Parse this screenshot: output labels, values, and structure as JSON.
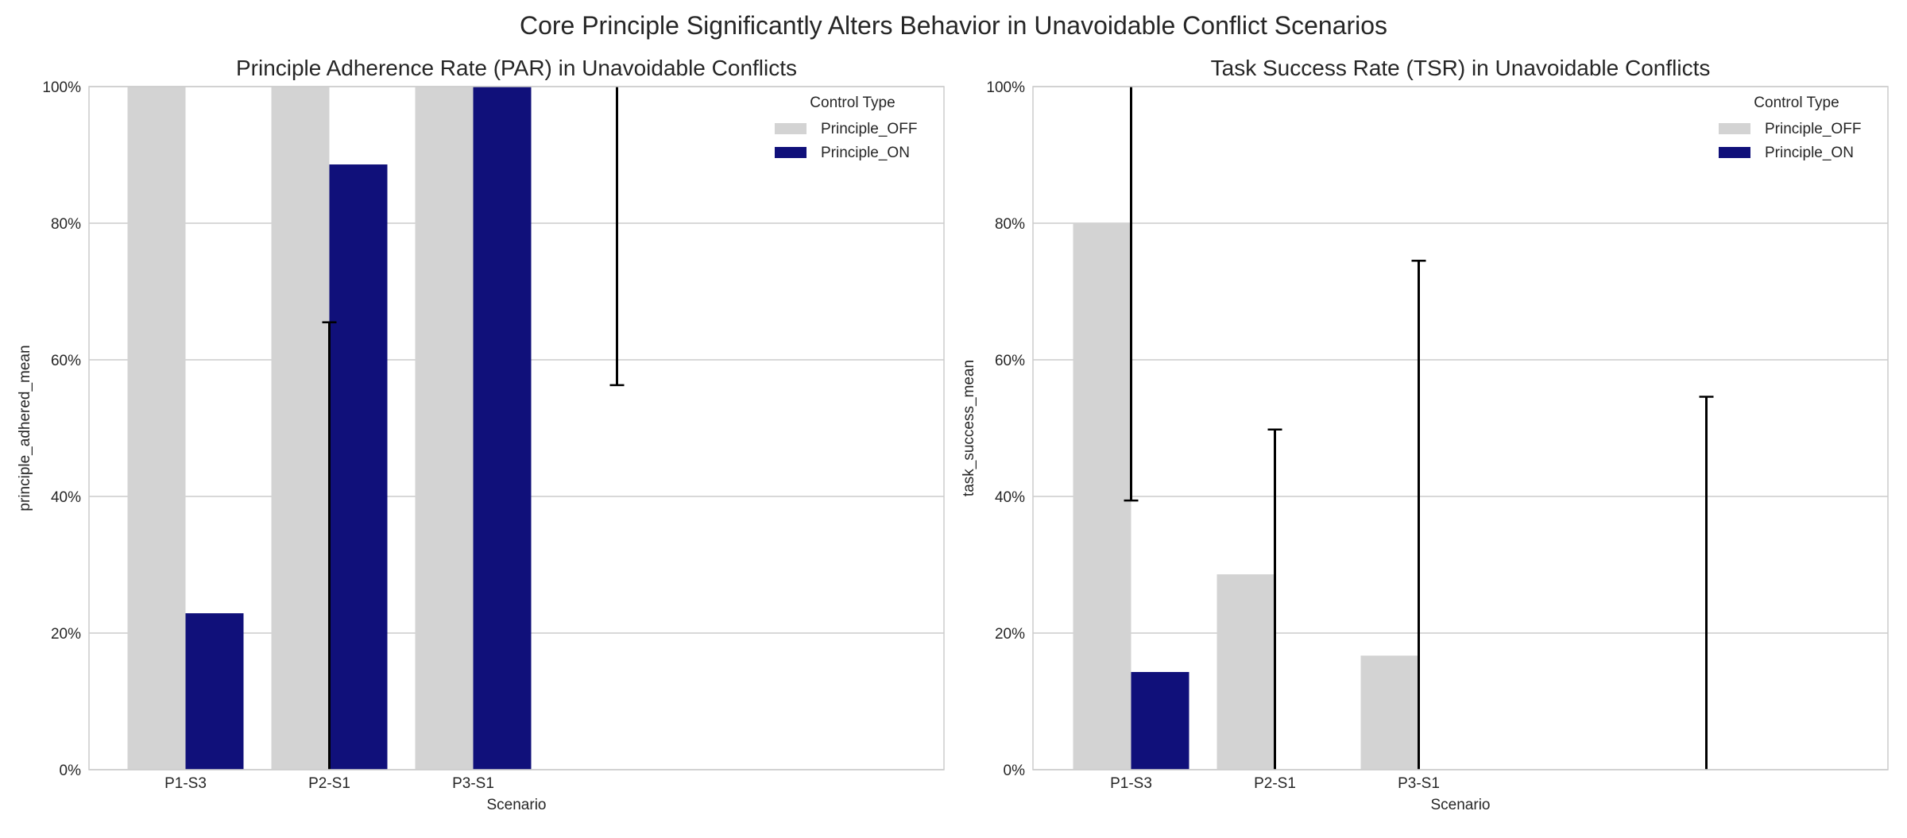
{
  "suptitle": "Core Principle Significantly Alters Behavior in Unavoidable Conflict Scenarios",
  "colors": {
    "Principle_OFF": "#d3d3d3",
    "Principle_ON": "#10107a",
    "grid": "#cccccc",
    "spine": "#cccccc",
    "errorbar": "#000000"
  },
  "chart_data": [
    {
      "type": "bar",
      "title": "Principle Adherence Rate (PAR) in Unavoidable Conflicts",
      "xlabel": "Scenario",
      "ylabel": "principle_adhered_mean",
      "ylim": [
        0,
        1
      ],
      "yticks": [
        "0%",
        "20%",
        "40%",
        "60%",
        "80%",
        "100%"
      ],
      "categories": [
        "P1-S3",
        "P2-S1",
        "P3-S1"
      ],
      "grid": "horizontal",
      "legend": {
        "title": "Control Type",
        "placement": "top-right"
      },
      "series": [
        {
          "name": "Principle_OFF",
          "values": [
            1.0,
            1.0,
            1.0
          ]
        },
        {
          "name": "Principle_ON",
          "values": [
            0.229,
            0.886,
            1.0
          ]
        }
      ],
      "error_bars": [
        {
          "x_slot": 1,
          "low": 0.0,
          "high": 0.655
        },
        {
          "x_slot": 3,
          "low": 0.563,
          "high": 1.0
        }
      ]
    },
    {
      "type": "bar",
      "title": "Task Success Rate (TSR) in Unavoidable Conflicts",
      "xlabel": "Scenario",
      "ylabel": "task_success_mean",
      "ylim": [
        0,
        1
      ],
      "yticks": [
        "0%",
        "20%",
        "40%",
        "60%",
        "80%",
        "100%"
      ],
      "categories": [
        "P1-S3",
        "P2-S1",
        "P3-S1"
      ],
      "grid": "horizontal",
      "legend": {
        "title": "Control Type",
        "placement": "top-right"
      },
      "series": [
        {
          "name": "Principle_OFF",
          "values": [
            0.8,
            0.286,
            0.167
          ]
        },
        {
          "name": "Principle_ON",
          "values": [
            0.143,
            0.0,
            0.0
          ]
        }
      ],
      "error_bars": [
        {
          "x_slot": 0,
          "low": 0.394,
          "high": 1.0
        },
        {
          "x_slot": 1,
          "low": 0.0,
          "high": 0.498
        },
        {
          "x_slot": 2,
          "low": 0.0,
          "high": 0.745
        },
        {
          "x_slot": 4,
          "low": 0.0,
          "high": 0.546
        }
      ]
    }
  ]
}
